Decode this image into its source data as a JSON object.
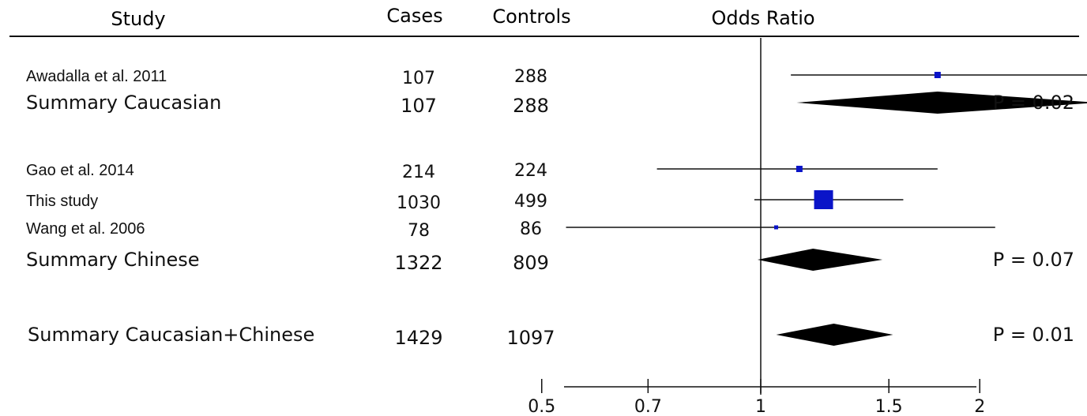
{
  "headers": {
    "study": "Study",
    "cases": "Cases",
    "controls": "Controls",
    "odds_ratio": "Odds Ratio"
  },
  "colors": {
    "study_marker": "#0a14c8",
    "summary_diamond": "#000000",
    "text": "#111111"
  },
  "chart_data": {
    "type": "forest",
    "x_scale": "log",
    "xlabel": "",
    "xlim": [
      0.4,
      3.2
    ],
    "reference_line": 1,
    "xticks": [
      0.5,
      0.7,
      1,
      1.5,
      2
    ],
    "xtick_labels": [
      "0.5",
      "0.7",
      "1",
      "1.5",
      "2"
    ],
    "rows": [
      {
        "kind": "study",
        "label": "Awadalla et al. 2011",
        "cases": "107",
        "controls": "288",
        "or": 1.75,
        "ci": [
          1.1,
          2.9
        ],
        "weight": "small"
      },
      {
        "kind": "summary",
        "label": "Summary Caucasian",
        "cases": "107",
        "controls": "288",
        "or": 1.75,
        "ci": [
          1.12,
          2.9
        ],
        "p": "P = 0.02"
      },
      {
        "kind": "study",
        "label": "Gao et al. 2014",
        "cases": "214",
        "controls": "224",
        "or": 1.13,
        "ci": [
          0.72,
          1.75
        ],
        "weight": "small"
      },
      {
        "kind": "study",
        "label": "This study",
        "cases": "1030",
        "controls": "499",
        "or": 1.22,
        "ci": [
          0.98,
          1.57
        ],
        "weight": "large"
      },
      {
        "kind": "study",
        "label": "Wang et al. 2006",
        "cases": "78",
        "controls": "86",
        "or": 1.05,
        "ci": [
          0.54,
          2.1
        ],
        "weight": "tiny"
      },
      {
        "kind": "summary",
        "label": "Summary Chinese",
        "cases": "1322",
        "controls": "809",
        "or": 1.18,
        "ci": [
          0.99,
          1.47
        ],
        "p": "P = 0.07"
      },
      {
        "kind": "summary",
        "label": "Summary Caucasian+Chinese",
        "cases": "1429",
        "controls": "1097",
        "or": 1.26,
        "ci": [
          1.05,
          1.52
        ],
        "p": "P = 0.01"
      }
    ]
  }
}
